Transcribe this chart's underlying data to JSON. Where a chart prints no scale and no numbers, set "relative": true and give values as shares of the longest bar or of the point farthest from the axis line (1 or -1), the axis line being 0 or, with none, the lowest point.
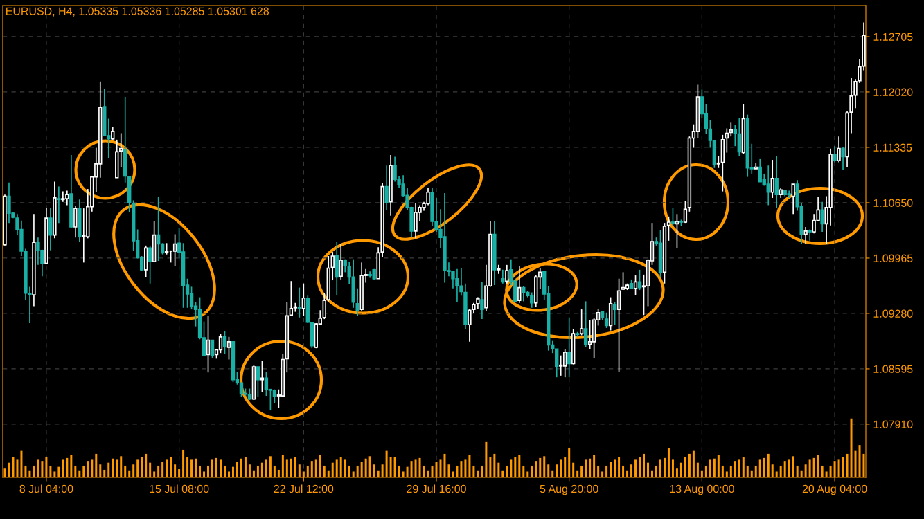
{
  "chart_data": [
    {
      "type": "candlestick",
      "title": "EURUSD, H4, 1.05335 1.05336 1.05285 1.05301 628",
      "colors": [
        "#ffffff",
        "#1ab0a6",
        "#1ab0a6",
        "#1ab0a6",
        "#1ab0a6",
        "#1ab0a6",
        "#1ab0a6",
        "#ffffff",
        "#1ab0a6",
        "#1ab0a6",
        "#ffffff",
        "#1ab0a6",
        "#ffffff",
        "#1ab0a6",
        "#ffffff",
        "#ffffff",
        "#1ab0a6",
        "#ffffff",
        "#1ab0a6",
        "#ffffff",
        "#ffffff",
        "#ffffff",
        "#ffffff",
        "#ffffff",
        "#1ab0a6",
        "#1ab0a6",
        "#ffffff",
        "#ffffff",
        "#ffffff",
        "#1ab0a6",
        "#1ab0a6",
        "#1ab0a6",
        "#1ab0a6",
        "#1ab0a6",
        "#ffffff",
        "#1ab0a6",
        "#ffffff",
        "#1ab0a6",
        "#1ab0a6",
        "#ffffff",
        "#ffffff",
        "#ffffff",
        "#1ab0a6",
        "#1ab0a6",
        "#1ab0a6",
        "#1ab0a6",
        "#1ab0a6",
        "#1ab0a6",
        "#1ab0a6",
        "#ffffff",
        "#1ab0a6",
        "#ffffff",
        "#ffffff",
        "#1ab0a6",
        "#ffffff",
        "#1ab0a6",
        "#1ab0a6",
        "#1ab0a6",
        "#1ab0a6",
        "#1ab0a6",
        "#ffffff",
        "#1ab0a6",
        "#ffffff",
        "#1ab0a6",
        "#1ab0a6",
        "#1ab0a6",
        "#ffffff",
        "#ffffff",
        "#ffffff",
        "#ffffff",
        "#ffffff",
        "#1ab0a6",
        "#ffffff",
        "#1ab0a6",
        "#1ab0a6",
        "#ffffff",
        "#ffffff",
        "#ffffff",
        "#ffffff",
        "#ffffff",
        "#1ab0a6",
        "#ffffff",
        "#1ab0a6",
        "#1ab0a6",
        "#1ab0a6",
        "#1ab0a6",
        "#ffffff",
        "#ffffff",
        "#1ab0a6",
        "#1ab0a6",
        "#ffffff",
        "#ffffff",
        "#1ab0a6",
        "#ffffff",
        "#1ab0a6",
        "#1ab0a6",
        "#1ab0a6",
        "#1ab0a6",
        "#1ab0a6",
        "#ffffff",
        "#ffffff",
        "#ffffff",
        "#ffffff",
        "#1ab0a6",
        "#1ab0a6",
        "#1ab0a6",
        "#1ab0a6",
        "#1ab0a6",
        "#1ab0a6",
        "#1ab0a6",
        "#1ab0a6",
        "#1ab0a6",
        "#ffffff",
        "#ffffff",
        "#ffffff",
        "#1ab0a6",
        "#ffffff",
        "#ffffff",
        "#1ab0a6",
        "#ffffff",
        "#1ab0a6",
        "#ffffff",
        "#1ab0a6",
        "#1ab0a6",
        "#ffffff",
        "#1ab0a6",
        "#1ab0a6",
        "#1ab0a6",
        "#ffffff",
        "#ffffff",
        "#1ab0a6",
        "#1ab0a6",
        "#1ab0a6",
        "#1ab0a6",
        "#ffffff",
        "#ffffff",
        "#1ab0a6",
        "#ffffff",
        "#1ab0a6",
        "#ffffff",
        "#1ab0a6",
        "#ffffff",
        "#ffffff",
        "#ffffff",
        "#1ab0a6",
        "#1ab0a6",
        "#ffffff",
        "#1ab0a6",
        "#ffffff",
        "#ffffff",
        "#ffffff",
        "#1ab0a6",
        "#ffffff",
        "#1ab0a6",
        "#ffffff",
        "#ffffff",
        "#ffffff",
        "#1ab0a6",
        "#1ab0a6",
        "#ffffff",
        "#ffffff",
        "#1ab0a6",
        "#ffffff",
        "#1ab0a6",
        "#ffffff",
        "#ffffff",
        "#ffffff",
        "#ffffff",
        "#1ab0a6",
        "#1ab0a6",
        "#1ab0a6",
        "#1ab0a6",
        "#ffffff",
        "#ffffff",
        "#ffffff",
        "#ffffff",
        "#1ab0a6",
        "#1ab0a6",
        "#ffffff",
        "#1ab0a6",
        "#1ab0a6",
        "#ffffff",
        "#1ab0a6",
        "#1ab0a6",
        "#1ab0a6",
        "#ffffff",
        "#1ab0a6",
        "#ffffff",
        "#1ab0a6",
        "#1ab0a6",
        "#ffffff",
        "#1ab0a6",
        "#1ab0a6",
        "#ffffff",
        "#1ab0a6",
        "#ffffff",
        "#ffffff",
        "#1ab0a6",
        "#ffffff",
        "#ffffff",
        "#1ab0a6",
        "#ffffff",
        "#1ab0a6",
        "#ffffff",
        "#ffffff",
        "#ffffff",
        "#ffffff",
        "#ffffff"
      ],
      "ylim": [
        1.0725,
        1.1309
      ],
      "yticks": [
        {
          "value": 1.0791,
          "label": "1.07910"
        },
        1.08595,
        {
          "value": 1.0928,
          "label": "1.09280"
        },
        1.09965,
        {
          "value": 1.1065,
          "label": "1.10650"
        },
        1.11335,
        {
          "value": 1.1202,
          "label": "1.12020"
        },
        1.12705
      ],
      "grid": true,
      "categories": [
        null,
        null,
        null,
        null,
        null,
        null,
        null,
        null,
        null,
        null,
        "8 Jul 04:00",
        null,
        null,
        null,
        null,
        null,
        null,
        null,
        null,
        null,
        null,
        null,
        null,
        null,
        null,
        null,
        null,
        null,
        null,
        null,
        null,
        null,
        null,
        null,
        null,
        null,
        null,
        null,
        null,
        null,
        null,
        null,
        "15 Jul 08:00",
        null,
        null,
        null,
        null,
        null,
        null,
        null,
        null,
        null,
        null,
        null,
        null,
        null,
        null,
        null,
        null,
        null,
        null,
        null,
        null,
        null,
        null,
        null,
        null,
        null,
        null,
        null,
        null,
        null,
        "22 Jul 12:00",
        null,
        null,
        null,
        null,
        null,
        null,
        null,
        null,
        null,
        null,
        null,
        null,
        null,
        null,
        null,
        null,
        null,
        null,
        null,
        null,
        null,
        null,
        null,
        null,
        null,
        null,
        null,
        null,
        null,
        null,
        null,
        "29 Jul 16:00",
        null,
        null,
        null,
        null,
        null,
        null,
        null,
        null,
        null,
        null,
        null,
        null,
        null,
        null,
        null,
        null,
        null,
        null,
        null,
        null,
        null,
        null,
        null,
        null,
        null,
        null,
        null,
        null,
        null,
        null,
        null,
        "5 Aug 20:00",
        null,
        null,
        null,
        null,
        null,
        null,
        null,
        null,
        null,
        null,
        null,
        null,
        null,
        null,
        null,
        null,
        null,
        null,
        null,
        null,
        null,
        null,
        null,
        null,
        null,
        null,
        null,
        null,
        null,
        null,
        null,
        "13 Aug 00:00",
        null,
        null,
        null,
        null,
        null,
        null,
        null,
        null,
        null,
        null,
        null,
        null,
        null,
        null,
        null,
        null,
        null,
        null,
        null,
        null,
        null,
        null,
        null,
        null,
        null,
        null,
        null,
        null,
        null,
        null,
        null,
        "20 Aug 04:00",
        null,
        null,
        null,
        null,
        null,
        null,
        null
      ],
      "ohlc": [
        [
          1.1013,
          1.1075,
          1.1012,
          1.1073
        ],
        [
          1.1073,
          1.109,
          1.104,
          1.1052
        ],
        [
          1.1052,
          1.1053,
          1.1046,
          1.1047
        ],
        [
          1.1046,
          1.1051,
          1.1025,
          1.1032
        ],
        [
          1.1032,
          1.1043,
          1.0999,
          1.1005
        ],
        [
          1.1005,
          1.1008,
          1.0945,
          1.0953
        ],
        [
          1.0953,
          1.0961,
          1.0916,
          1.0951
        ],
        [
          1.0951,
          1.1051,
          1.0937,
          1.1016
        ],
        [
          1.1016,
          1.1022,
          1.0988,
          1.1006
        ],
        [
          1.1006,
          1.1007,
          1.0974,
          1.099
        ],
        [
          1.099,
          1.1058,
          1.099,
          1.1046
        ],
        [
          1.1046,
          1.1059,
          1.1006,
          1.1025
        ],
        [
          1.1025,
          1.1091,
          1.1021,
          1.1071
        ],
        [
          1.107,
          1.1085,
          1.104,
          1.1069
        ],
        [
          1.1069,
          1.1079,
          1.1066,
          1.107
        ],
        [
          1.107,
          1.108,
          1.1062,
          1.1075
        ],
        [
          1.1076,
          1.1124,
          1.1034,
          1.1035
        ],
        [
          1.1035,
          1.1061,
          1.1022,
          1.1058
        ],
        [
          1.1058,
          1.1069,
          1.1017,
          1.1023
        ],
        [
          1.1023,
          1.1058,
          1.0991,
          1.1024
        ],
        [
          1.1023,
          1.1082,
          1.1021,
          1.106
        ],
        [
          1.106,
          1.1098,
          1.1054,
          1.1097
        ],
        [
          1.1097,
          1.1133,
          1.1078,
          1.1113
        ],
        [
          1.1113,
          1.1215,
          1.1096,
          1.1183
        ],
        [
          1.1184,
          1.1206,
          1.1148,
          1.1148
        ],
        [
          1.1148,
          1.1169,
          1.112,
          1.1144
        ],
        [
          1.1144,
          1.1159,
          1.1143,
          1.1153
        ],
        [
          1.1096,
          1.1143,
          1.1096,
          1.1128
        ],
        [
          1.1129,
          1.1151,
          1.1109,
          1.1132
        ],
        [
          1.1131,
          1.1196,
          1.109,
          1.1098
        ],
        [
          1.1097,
          1.1098,
          1.1053,
          1.1065
        ],
        [
          1.1064,
          1.1068,
          1.1005,
          1.1018
        ],
        [
          1.1018,
          1.1032,
          1.0996,
          1.0997
        ],
        [
          1.0997,
          1.0999,
          1.0981,
          1.0982
        ],
        [
          1.0982,
          1.1012,
          1.0973,
          1.1009
        ],
        [
          1.1009,
          1.1012,
          1.0965,
          1.0992
        ],
        [
          1.0992,
          1.1042,
          1.0992,
          1.1025
        ],
        [
          1.1025,
          1.1072,
          1.0993,
          1.1014
        ],
        [
          1.1014,
          1.1015,
          1.1001,
          1.1003
        ],
        [
          1.1004,
          1.1015,
          1.1001,
          1.1005
        ],
        [
          1.1005,
          1.1006,
          1.0991,
          1.1005
        ],
        [
          1.1005,
          1.1026,
          1.0987,
          1.1014
        ],
        [
          1.1015,
          1.1034,
          1.0997,
          1.1004
        ],
        [
          1.1004,
          1.1015,
          1.0935,
          1.0963
        ],
        [
          1.0963,
          1.0971,
          1.0935,
          1.0952
        ],
        [
          1.0952,
          1.0961,
          1.0933,
          1.0937
        ],
        [
          1.0937,
          1.0942,
          1.0912,
          1.0933
        ],
        [
          1.0933,
          1.0948,
          1.0896,
          1.0898
        ],
        [
          1.0898,
          1.0918,
          1.0876,
          1.0876
        ],
        [
          1.0877,
          1.0925,
          1.0855,
          1.0895
        ],
        [
          1.0895,
          1.0895,
          1.0873,
          1.0876
        ],
        [
          1.0877,
          1.0884,
          1.0872,
          1.0883
        ],
        [
          1.0883,
          1.0903,
          1.0879,
          1.0899
        ],
        [
          1.0899,
          1.0906,
          1.0878,
          1.0887
        ],
        [
          1.0886,
          1.0899,
          1.0871,
          1.0893
        ],
        [
          1.0893,
          1.0893,
          1.0843,
          1.0846
        ],
        [
          1.0846,
          1.0856,
          1.084,
          1.0843
        ],
        [
          1.0842,
          1.0842,
          1.0825,
          1.0829
        ],
        [
          1.0829,
          1.0835,
          1.0826,
          1.0828
        ],
        [
          1.0828,
          1.0835,
          1.0821,
          1.0822
        ],
        [
          1.0822,
          1.0864,
          1.0821,
          1.0862
        ],
        [
          1.0862,
          1.0862,
          1.0825,
          1.0846
        ],
        [
          1.0846,
          1.0869,
          1.0831,
          1.0848
        ],
        [
          1.0848,
          1.0856,
          1.0826,
          1.0834
        ],
        [
          1.0834,
          1.0834,
          1.0808,
          1.0833
        ],
        [
          1.0833,
          1.0834,
          1.0817,
          1.0826
        ],
        [
          1.0826,
          1.0834,
          1.0811,
          1.0827
        ],
        [
          1.0826,
          1.0878,
          1.0826,
          1.0871
        ],
        [
          1.0872,
          1.0942,
          1.0855,
          1.0925
        ],
        [
          1.0926,
          1.0968,
          1.0925,
          1.0934
        ],
        [
          1.0935,
          1.0941,
          1.093,
          1.0936
        ],
        [
          1.0935,
          1.096,
          1.0923,
          1.0934
        ],
        [
          1.0934,
          1.0965,
          1.0925,
          1.0947
        ],
        [
          1.0947,
          1.095,
          1.0916,
          1.0917
        ],
        [
          1.0917,
          1.0917,
          1.0885,
          1.0888
        ],
        [
          1.0886,
          1.0916,
          1.0885,
          1.0915
        ],
        [
          1.0915,
          1.0932,
          1.0914,
          1.0922
        ],
        [
          1.0923,
          1.0953,
          1.0921,
          1.0944
        ],
        [
          1.0945,
          1.0999,
          1.0943,
          1.0984
        ],
        [
          1.0985,
          1.1004,
          1.0969,
          1.0999
        ],
        [
          1.1,
          1.1017,
          1.0951,
          1.0973
        ],
        [
          1.0974,
          1.1014,
          1.097,
          1.0994
        ],
        [
          1.0994,
          1.0995,
          1.0979,
          1.0987
        ],
        [
          1.0986,
          1.0992,
          1.0964,
          1.0973
        ],
        [
          1.0973,
          1.0995,
          1.0935,
          1.0942
        ],
        [
          1.094,
          1.0959,
          1.0925,
          1.0932
        ],
        [
          1.0933,
          1.0991,
          1.0931,
          1.0975
        ],
        [
          1.0975,
          1.0983,
          1.0966,
          1.0976
        ],
        [
          1.0976,
          1.098,
          1.0972,
          1.0975
        ],
        [
          1.0982,
          1.0983,
          1.0969,
          1.0971
        ],
        [
          1.0971,
          1.101,
          1.0971,
          1.1003
        ],
        [
          1.1004,
          1.1089,
          1.0998,
          1.1085
        ],
        [
          1.1085,
          1.1111,
          1.1056,
          1.1065
        ],
        [
          1.1066,
          1.1124,
          1.1049,
          1.1111
        ],
        [
          1.1111,
          1.1122,
          1.1091,
          1.1094
        ],
        [
          1.1094,
          1.1098,
          1.1083,
          1.1088
        ],
        [
          1.1088,
          1.1099,
          1.1072,
          1.1074
        ],
        [
          1.1074,
          1.1083,
          1.1056,
          1.1059
        ],
        [
          1.1059,
          1.106,
          1.1022,
          1.103
        ],
        [
          1.103,
          1.1064,
          1.1021,
          1.1053
        ],
        [
          1.1053,
          1.1062,
          1.1042,
          1.1059
        ],
        [
          1.1059,
          1.1066,
          1.1055,
          1.1064
        ],
        [
          1.1064,
          1.1083,
          1.1062,
          1.1078
        ],
        [
          1.1078,
          1.1083,
          1.1036,
          1.1042
        ],
        [
          1.1042,
          1.1071,
          1.1029,
          1.1032
        ],
        [
          1.1032,
          1.1057,
          1.1009,
          1.1022
        ],
        [
          1.1023,
          1.1077,
          1.0966,
          1.0981
        ],
        [
          1.0981,
          1.0991,
          1.0974,
          1.098
        ],
        [
          1.098,
          1.0981,
          1.0959,
          1.0971
        ],
        [
          1.0971,
          1.0983,
          1.0942,
          1.0962
        ],
        [
          1.0962,
          1.0984,
          1.095,
          1.0955
        ],
        [
          1.0954,
          1.0965,
          1.0909,
          1.0914
        ],
        [
          1.0914,
          1.0934,
          1.0893,
          1.0932
        ],
        [
          1.0933,
          1.0941,
          1.0928,
          1.0939
        ],
        [
          1.094,
          1.0948,
          1.0933,
          1.0946
        ],
        [
          1.0945,
          1.0967,
          1.0921,
          1.0933
        ],
        [
          1.0935,
          1.0988,
          1.0931,
          1.0962
        ],
        [
          1.0962,
          1.1042,
          1.0961,
          1.1026
        ],
        [
          1.1026,
          1.1042,
          1.0963,
          1.0982
        ],
        [
          1.0982,
          1.0988,
          1.0977,
          1.0983
        ],
        [
          1.0971,
          1.0982,
          1.0965,
          1.0967
        ],
        [
          1.0968,
          1.0988,
          1.0965,
          1.0981
        ],
        [
          1.0982,
          1.0995,
          1.0963,
          1.0968
        ],
        [
          1.0968,
          1.0971,
          1.0942,
          1.0943
        ],
        [
          1.0944,
          1.0987,
          1.0941,
          1.096
        ],
        [
          1.096,
          1.0962,
          1.0943,
          1.0954
        ],
        [
          1.0954,
          1.0956,
          1.0948,
          1.095
        ],
        [
          1.095,
          1.0954,
          1.0935,
          1.0941
        ],
        [
          1.0941,
          1.0975,
          1.0936,
          1.0973
        ],
        [
          1.0973,
          1.0984,
          1.0958,
          1.0979
        ],
        [
          1.098,
          1.0981,
          1.0945,
          1.0952
        ],
        [
          1.0952,
          1.0962,
          1.0882,
          1.0889
        ],
        [
          1.0889,
          1.0894,
          1.0879,
          1.0885
        ],
        [
          1.0884,
          1.0884,
          1.0849,
          1.0862
        ],
        [
          1.0863,
          1.0876,
          1.0851,
          1.0864
        ],
        [
          1.0863,
          1.0884,
          1.0849,
          1.088
        ],
        [
          1.088,
          1.0923,
          1.0849,
          1.0866
        ],
        [
          1.0866,
          1.0909,
          1.0865,
          1.0903
        ],
        [
          1.0903,
          1.0905,
          1.0899,
          1.0902
        ],
        [
          1.0903,
          1.0933,
          1.0901,
          1.0909
        ],
        [
          1.0909,
          1.0943,
          1.0886,
          1.089
        ],
        [
          1.089,
          1.092,
          1.0884,
          1.0893
        ],
        [
          1.0893,
          1.0922,
          1.0873,
          1.092
        ],
        [
          1.092,
          1.0934,
          1.0913,
          1.0929
        ],
        [
          1.093,
          1.093,
          1.092,
          1.0923
        ],
        [
          1.0921,
          1.0929,
          1.091,
          1.0913
        ],
        [
          1.0913,
          1.0948,
          1.0907,
          1.094
        ],
        [
          1.0939,
          1.0942,
          1.0914,
          1.0933
        ],
        [
          1.0933,
          1.0971,
          1.0856,
          1.0956
        ],
        [
          1.0958,
          1.0979,
          1.0957,
          1.096
        ],
        [
          1.0959,
          1.0965,
          1.0957,
          1.0963
        ],
        [
          1.0965,
          1.097,
          1.0959,
          1.0959
        ],
        [
          1.0959,
          1.0975,
          1.0951,
          1.0967
        ],
        [
          1.0967,
          1.0982,
          1.0957,
          1.096
        ],
        [
          1.0961,
          1.0976,
          1.0926,
          1.0962
        ],
        [
          1.0962,
          1.0995,
          1.0937,
          1.0994
        ],
        [
          1.0993,
          1.104,
          1.0988,
          1.1017
        ],
        [
          1.1017,
          1.1022,
          1.1012,
          1.1015
        ],
        [
          1.1015,
          1.1031,
          1.0973,
          1.0979
        ],
        [
          1.0979,
          1.104,
          1.0965,
          1.1036
        ],
        [
          1.1037,
          1.1048,
          1.1018,
          1.1041
        ],
        [
          1.1041,
          1.1059,
          1.1036,
          1.104
        ],
        [
          1.1039,
          1.1051,
          1.1009,
          1.1042
        ],
        [
          1.1042,
          1.1044,
          1.1036,
          1.1041
        ],
        [
          1.1041,
          1.1067,
          1.104,
          1.1057
        ],
        [
          1.1059,
          1.1147,
          1.1054,
          1.1145
        ],
        [
          1.1145,
          1.1162,
          1.1133,
          1.1153
        ],
        [
          1.1153,
          1.1211,
          1.1145,
          1.1196
        ],
        [
          1.1196,
          1.1205,
          1.117,
          1.1175
        ],
        [
          1.1175,
          1.1187,
          1.115,
          1.1157
        ],
        [
          1.1156,
          1.1167,
          1.1133,
          1.1142
        ],
        [
          1.1142,
          1.1142,
          1.1108,
          1.1112
        ],
        [
          1.1113,
          1.1123,
          1.1108,
          1.1114
        ],
        [
          1.1115,
          1.1149,
          1.1079,
          1.1143
        ],
        [
          1.1145,
          1.1157,
          1.1127,
          1.1151
        ],
        [
          1.1152,
          1.1164,
          1.1147,
          1.1155
        ],
        [
          1.1155,
          1.1161,
          1.1135,
          1.1151
        ],
        [
          1.115,
          1.117,
          1.1123,
          1.1128
        ],
        [
          1.1127,
          1.1187,
          1.1125,
          1.1169
        ],
        [
          1.1169,
          1.1174,
          1.1097,
          1.1108
        ],
        [
          1.1108,
          1.1138,
          1.1101,
          1.1107
        ],
        [
          1.1107,
          1.1114,
          1.1107,
          1.1109
        ],
        [
          1.1109,
          1.1119,
          1.1091,
          1.1091
        ],
        [
          1.1094,
          1.1101,
          1.1086,
          1.1088
        ],
        [
          1.1088,
          1.1111,
          1.1062,
          1.1078
        ],
        [
          1.1078,
          1.1118,
          1.1071,
          1.1095
        ],
        [
          1.1095,
          1.1123,
          1.1059,
          1.1075
        ],
        [
          1.1075,
          1.1083,
          1.1071,
          1.1081
        ],
        [
          1.108,
          1.1081,
          1.1073,
          1.1075
        ],
        [
          1.1076,
          1.108,
          1.1071,
          1.1075
        ],
        [
          1.1073,
          1.1088,
          1.1051,
          1.1088
        ],
        [
          1.1088,
          1.1093,
          1.1055,
          1.106
        ],
        [
          1.106,
          1.1065,
          1.1014,
          1.1026
        ],
        [
          1.1026,
          1.1035,
          1.1014,
          1.103
        ],
        [
          1.103,
          1.1032,
          1.1018,
          1.1029
        ],
        [
          1.1029,
          1.1051,
          1.1027,
          1.1043
        ],
        [
          1.1043,
          1.1072,
          1.1042,
          1.1056
        ],
        [
          1.1056,
          1.1066,
          1.1029,
          1.1039
        ],
        [
          1.1039,
          1.1073,
          1.1014,
          1.1059
        ],
        [
          1.1059,
          1.1132,
          1.1037,
          1.1125
        ],
        [
          1.1125,
          1.1135,
          1.1115,
          1.1117
        ],
        [
          1.1117,
          1.1147,
          1.1115,
          1.1132
        ],
        [
          1.1132,
          1.1134,
          1.1106,
          1.1122
        ],
        [
          1.1122,
          1.1178,
          1.1109,
          1.1176
        ],
        [
          1.1177,
          1.1219,
          1.1151,
          1.1197
        ],
        [
          1.1198,
          1.1218,
          1.1182,
          1.1215
        ],
        [
          1.1216,
          1.1243,
          1.1213,
          1.1233
        ],
        [
          1.1234,
          1.1288,
          1.1229,
          1.1272
        ]
      ]
    },
    {
      "type": "bar",
      "relative": true,
      "color": "#ff9900",
      "categories": [
        null,
        null,
        null,
        null,
        null,
        null,
        null,
        null,
        null,
        null,
        null,
        null,
        null,
        null,
        null,
        null,
        null,
        null,
        null,
        null,
        null,
        null,
        null,
        null,
        null,
        null,
        null,
        null,
        null,
        null,
        null,
        null,
        null,
        null,
        null,
        null,
        null,
        null,
        null,
        null,
        null,
        null,
        null,
        null,
        null,
        null,
        null,
        null,
        null,
        null,
        null,
        null,
        null,
        null,
        null,
        null,
        null,
        null,
        null,
        null,
        null,
        null,
        null,
        null,
        null,
        null,
        null,
        null,
        null,
        null,
        null,
        null,
        null,
        null,
        null,
        null,
        null,
        null,
        null,
        null,
        null,
        null,
        null,
        null,
        null,
        null,
        null,
        null,
        null,
        null,
        null,
        null,
        null,
        null,
        null,
        null,
        null,
        null,
        null,
        null,
        null,
        null,
        null,
        null,
        null,
        null,
        null,
        null,
        null,
        null,
        null,
        null,
        null,
        null,
        null,
        null,
        null,
        null,
        null,
        null,
        null,
        null,
        null,
        null,
        null,
        null,
        null,
        null,
        null,
        null,
        null,
        null,
        null,
        null,
        null,
        null,
        null,
        null,
        null,
        null,
        null,
        null,
        null,
        null,
        null,
        null,
        null,
        null,
        null,
        null,
        null,
        null,
        null,
        null,
        null,
        null,
        null,
        null,
        null,
        null,
        null,
        null,
        null,
        null,
        null,
        null,
        null,
        null,
        null,
        null,
        null,
        null,
        null,
        null,
        null,
        null,
        null,
        null,
        null,
        null,
        null,
        null,
        null,
        null,
        null,
        null,
        null,
        null,
        null,
        null,
        null,
        null,
        null,
        null,
        null,
        null,
        null,
        null,
        null,
        null,
        null,
        null,
        null,
        null,
        null,
        null,
        null,
        null
      ],
      "values": [
        0.15,
        0.25,
        0.35,
        0.3,
        0.45,
        0.2,
        0.12,
        0.2,
        0.3,
        0.28,
        0.35,
        0.2,
        0.1,
        0.18,
        0.3,
        0.33,
        0.38,
        0.2,
        0.12,
        0.2,
        0.28,
        0.3,
        0.4,
        0.22,
        0.13,
        0.25,
        0.32,
        0.3,
        0.36,
        0.2,
        0.12,
        0.22,
        0.3,
        0.35,
        0.4,
        0.25,
        0.1,
        0.2,
        0.26,
        0.3,
        0.35,
        0.22,
        0.14,
        0.47,
        0.35,
        0.3,
        0.32,
        0.2,
        0.1,
        0.2,
        0.3,
        0.33,
        0.3,
        0.2,
        0.1,
        0.18,
        0.26,
        0.32,
        0.35,
        0.22,
        0.12,
        0.2,
        0.25,
        0.3,
        0.36,
        0.2,
        0.13,
        0.38,
        0.3,
        0.32,
        0.35,
        0.22,
        0.1,
        0.2,
        0.28,
        0.3,
        0.38,
        0.2,
        0.12,
        0.25,
        0.3,
        0.35,
        0.3,
        0.2,
        0.1,
        0.2,
        0.26,
        0.32,
        0.36,
        0.22,
        0.12,
        0.22,
        0.45,
        0.35,
        0.34,
        0.2,
        0.1,
        0.18,
        0.28,
        0.3,
        0.33,
        0.2,
        0.12,
        0.2,
        0.26,
        0.3,
        0.4,
        0.22,
        0.1,
        0.2,
        0.28,
        0.3,
        0.38,
        0.2,
        0.12,
        0.2,
        0.6,
        0.35,
        0.4,
        0.25,
        0.12,
        0.2,
        0.3,
        0.34,
        0.38,
        0.2,
        0.1,
        0.2,
        0.28,
        0.33,
        0.36,
        0.22,
        0.12,
        0.22,
        0.3,
        0.35,
        0.5,
        0.25,
        0.12,
        0.2,
        0.3,
        0.32,
        0.38,
        0.2,
        0.1,
        0.2,
        0.26,
        0.3,
        0.35,
        0.2,
        0.12,
        0.22,
        0.3,
        0.34,
        0.4,
        0.25,
        0.12,
        0.2,
        0.3,
        0.33,
        0.5,
        0.3,
        0.15,
        0.25,
        0.35,
        0.4,
        0.45,
        0.25,
        0.12,
        0.2,
        0.3,
        0.32,
        0.38,
        0.2,
        0.1,
        0.2,
        0.28,
        0.3,
        0.35,
        0.2,
        0.12,
        0.2,
        0.3,
        0.33,
        0.4,
        0.22,
        0.1,
        0.2,
        0.28,
        0.3,
        0.36,
        0.2,
        0.12,
        0.22,
        0.3,
        0.33,
        0.38,
        0.2,
        0.1,
        0.2,
        0.28,
        0.3,
        0.35,
        0.4,
        1.0,
        0.45,
        0.55,
        0.4
      ]
    }
  ]
}
